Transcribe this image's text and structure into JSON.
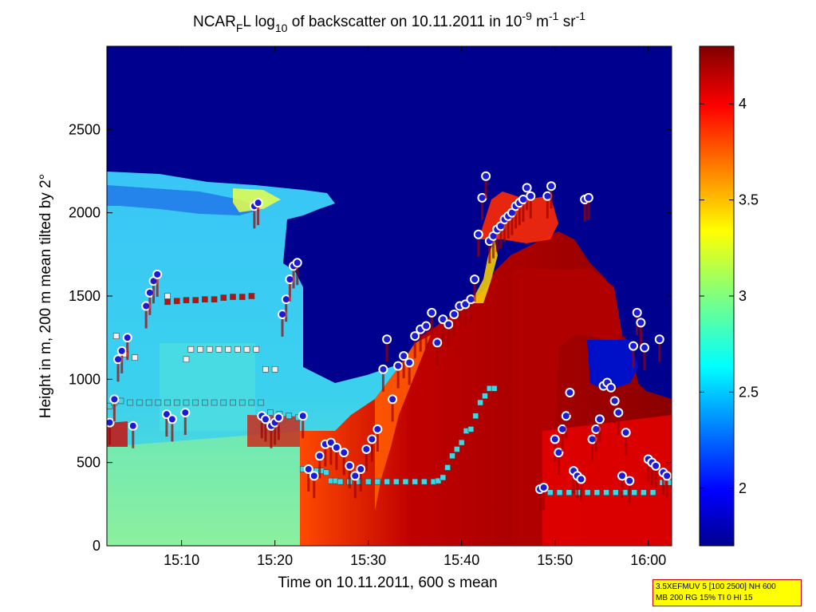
{
  "chart_data": {
    "type": "heatmap",
    "title_parts": [
      "NCAR",
      "F",
      "L log",
      "10",
      " of backscatter on 10.11.2011 in 10",
      "-9",
      " m",
      "-1",
      " sr",
      "-1"
    ],
    "xlabel": "Time on 10.11.2011, 600 s mean",
    "ylabel": "Height in m, 200 m mean tilted by 2°",
    "x_ticks": [
      "15:10",
      "15:20",
      "15:30",
      "15:40",
      "15:50",
      "16:00"
    ],
    "x_tick_minutes": [
      910,
      920,
      930,
      940,
      950,
      960
    ],
    "xlim_minutes": [
      902,
      962.5
    ],
    "y_ticks": [
      0,
      500,
      1000,
      1500,
      2000,
      2500
    ],
    "ylim": [
      0,
      3000
    ],
    "colorbar": {
      "ticks": [
        2,
        2.5,
        3,
        3.5,
        4
      ],
      "range": [
        1.7,
        4.3
      ],
      "colormap": "jet"
    },
    "colors": {
      "background_dark_blue": "#00008f",
      "cloud_light_blue": "#2aa6f0",
      "aerosol_cyan_green": "#7fe6a8",
      "high_backscatter_dark_red": "#8b0000",
      "marker_circle_fill": "#1b1bd6",
      "marker_circle_edge": "#ffffff",
      "marker_square_cyan": "#3fd6e6",
      "marker_square_red": "#b31414",
      "marker_square_white": "#f0f0f0"
    },
    "series": [
      {
        "marker": "square-cyan",
        "x_minutes": [
          902.3,
          902.8,
          903.5,
          904.5,
          905.5,
          906.5,
          907.5,
          908.5,
          909.5,
          910.5,
          911.5,
          912.5,
          913.5,
          914.5,
          915.5,
          916.5,
          917.5,
          918.5,
          919.5,
          920.5,
          921.5,
          922.5,
          923.0,
          923.5,
          924.0,
          924.5,
          925.0,
          925.5,
          926.0,
          926.5,
          927.0,
          928.0,
          929.0,
          930.0,
          931.0,
          932.0,
          933.0,
          934.0,
          935.0,
          936.0,
          937.0,
          937.5,
          938.0,
          938.5,
          939.0,
          939.5,
          940.0,
          940.5,
          941.0,
          941.5,
          942.0,
          942.5,
          943.0,
          943.5,
          948.5,
          949.5,
          950.5,
          951.5,
          952.5,
          953.5,
          954.5,
          955.5,
          956.5,
          957.5,
          958.5,
          959.5,
          960.5,
          961.5,
          962.3
        ],
        "y": [
          840,
          860,
          870,
          860,
          860,
          860,
          860,
          860,
          860,
          860,
          860,
          860,
          860,
          860,
          860,
          860,
          860,
          860,
          800,
          790,
          780,
          770,
          460,
          460,
          450,
          450,
          450,
          440,
          390,
          390,
          385,
          385,
          385,
          385,
          385,
          385,
          385,
          385,
          385,
          385,
          385,
          390,
          410,
          470,
          540,
          580,
          620,
          690,
          700,
          780,
          860,
          900,
          945,
          945,
          340,
          320,
          320,
          320,
          320,
          320,
          320,
          320,
          320,
          320,
          320,
          320,
          320,
          380,
          380
        ]
      },
      {
        "marker": "square-red",
        "x_minutes": [
          908.5,
          909.5,
          910.5,
          911.5,
          912.5,
          913.5,
          914.5,
          915.5,
          916.5,
          917.5
        ],
        "y": [
          1465,
          1470,
          1475,
          1475,
          1480,
          1480,
          1490,
          1495,
          1495,
          1500
        ]
      },
      {
        "marker": "square-white",
        "x_minutes": [
          903.0,
          904.0,
          905.0,
          908.5,
          910.5,
          911.0,
          912.0,
          913.0,
          914.0,
          915.0,
          916.0,
          917.0,
          918.0,
          919.0,
          920.0
        ],
        "y": [
          1260,
          1150,
          1130,
          1500,
          1120,
          1180,
          1180,
          1180,
          1180,
          1180,
          1180,
          1180,
          1180,
          1060,
          1060
        ]
      },
      {
        "marker": "circle",
        "x_minutes": [
          902.3,
          902.8,
          903.2,
          903.6,
          904.2,
          904.8,
          906.2,
          906.6,
          907.0,
          907.4,
          908.4,
          909.0,
          910.4,
          917.8,
          918.2,
          918.6,
          919.0,
          919.6,
          920.0,
          920.4,
          920.8,
          921.2,
          921.6,
          922.0,
          922.4,
          923.0,
          923.6,
          924.2,
          924.8,
          925.4,
          926.0,
          926.6,
          927.4,
          928.0,
          928.6,
          929.2,
          929.8,
          930.4,
          931.0,
          931.6,
          932.0,
          932.6,
          933.2,
          933.8,
          934.4,
          935.0,
          935.6,
          936.2,
          936.8,
          937.4,
          938.0,
          938.6,
          939.2,
          939.8,
          940.4,
          941.0,
          941.4,
          941.8,
          942.2,
          942.6,
          943.0,
          943.4,
          943.8,
          944.2,
          944.6,
          945.0,
          945.4,
          945.8,
          946.2,
          946.6,
          947.0,
          947.4,
          948.4,
          948.8,
          949.2,
          949.6,
          950.0,
          950.4,
          950.8,
          951.2,
          951.6,
          952.0,
          952.4,
          952.8,
          953.2,
          953.6,
          954.0,
          954.4,
          954.8,
          955.2,
          955.6,
          956.0,
          956.4,
          956.8,
          957.2,
          957.6,
          958.0,
          958.4,
          958.8,
          959.2,
          959.6,
          960.0,
          960.4,
          960.8,
          961.2,
          961.6,
          962.0
        ],
        "y": [
          740,
          880,
          1120,
          1170,
          1250,
          720,
          1440,
          1520,
          1590,
          1630,
          790,
          760,
          800,
          2040,
          2060,
          780,
          760,
          720,
          740,
          770,
          1390,
          1480,
          1600,
          1680,
          1700,
          780,
          460,
          420,
          540,
          610,
          620,
          590,
          560,
          480,
          420,
          460,
          580,
          640,
          700,
          1060,
          1240,
          880,
          1080,
          1140,
          1100,
          1260,
          1300,
          1320,
          1400,
          1220,
          1360,
          1330,
          1390,
          1440,
          1450,
          1480,
          1600,
          1870,
          2090,
          2220,
          1830,
          1860,
          1900,
          1920,
          1960,
          1980,
          2000,
          2040,
          2060,
          2080,
          2150,
          2100,
          340,
          350,
          2100,
          2160,
          640,
          560,
          700,
          780,
          920,
          450,
          420,
          400,
          2080,
          2090,
          640,
          700,
          760,
          960,
          980,
          950,
          870,
          800,
          420,
          680,
          390,
          1200,
          1400,
          1340,
          1190,
          520,
          500,
          480,
          1240,
          440,
          420
        ]
      }
    ]
  },
  "info_box": {
    "line1": "3.5XEFMUV 5 [100 2500] NH 600",
    "line2": "MB 200 RG 15% TI 0 HI 15"
  }
}
